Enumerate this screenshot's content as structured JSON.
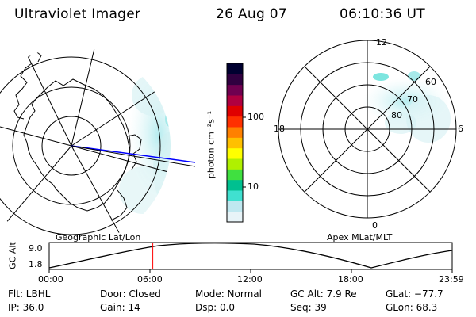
{
  "header": {
    "title": "Ultraviolet Imager",
    "date": "26 Aug 07",
    "time": "06:10:36 UT"
  },
  "colorbar": {
    "label": "photon cm⁻²s⁻¹",
    "ticks": [
      {
        "value": 100,
        "label": "100"
      },
      {
        "value": 10,
        "label": "10"
      }
    ],
    "scale": "log",
    "colors": [
      "#e8f4f8",
      "#c0e8f0",
      "#40e0d0",
      "#00c090",
      "#40e040",
      "#b0f000",
      "#ffff00",
      "#ffc000",
      "#ff8000",
      "#ff3000",
      "#e00000",
      "#b00040",
      "#700050",
      "#300040",
      "#000030"
    ]
  },
  "left_map": {
    "caption": "Geographic Lat/Lon"
  },
  "right_map": {
    "caption": "Apex MLat/MLT",
    "mlt_labels": {
      "top": "12",
      "bottom": "0",
      "left": "18",
      "right": "6"
    },
    "lat_labels": [
      "60",
      "70",
      "80"
    ]
  },
  "altitude_plot": {
    "ylabel": "GC Alt",
    "yticks": [
      "9.0",
      "1.8"
    ],
    "xticks": [
      "00:00",
      "06:00",
      "12:00",
      "18:00",
      "23:59"
    ],
    "current_time_marker_hours": 6.17
  },
  "status": {
    "row1": {
      "filter": "Flt: LBHL",
      "door": "Door: Closed",
      "mode": "Mode: Normal",
      "gc_alt": "GC Alt: 7.9 Re",
      "glat": "GLat: −77.7"
    },
    "row2": {
      "ip": "IP: 36.0",
      "gain": "Gain: 14",
      "dsp": "Dsp:     0.0",
      "seq": "Seq: 39",
      "glon": "GLon:  68.3"
    }
  }
}
